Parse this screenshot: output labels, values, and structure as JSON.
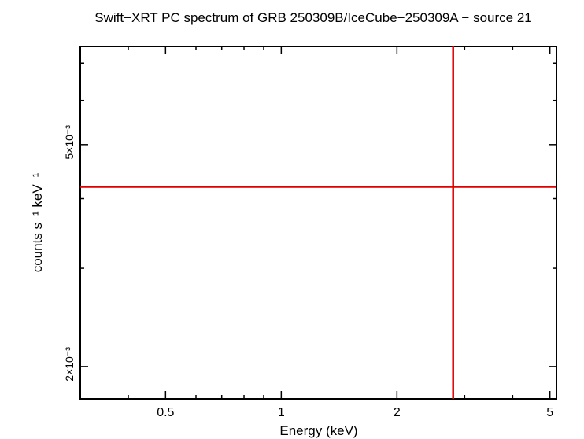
{
  "chart_data": {
    "type": "scatter",
    "title": "Swift−XRT PC spectrum of GRB 250309B/IceCube−250309A − source 21",
    "xlabel": "Energy (keV)",
    "ylabel": "counts s⁻¹ keV⁻¹",
    "x_scale": "log",
    "y_scale": "log",
    "xlim": [
      0.3,
      5.2
    ],
    "ylim": [
      0.00175,
      0.0075
    ],
    "x_ticks": [
      {
        "value": 0.5,
        "label": "0.5"
      },
      {
        "value": 1,
        "label": "1"
      },
      {
        "value": 2,
        "label": "2"
      },
      {
        "value": 5,
        "label": "5"
      }
    ],
    "y_ticks": [
      {
        "value": 0.002,
        "label": "2×10⁻³"
      },
      {
        "value": 0.005,
        "label": "5×10⁻³"
      }
    ],
    "grid": false,
    "series": [
      {
        "color": "#e00000",
        "points": [
          {
            "x": 2.8,
            "xerr": [
              0.3,
              5.2
            ],
            "y": 0.0042,
            "yerr": [
              0.00175,
              0.0075
            ]
          }
        ]
      }
    ]
  }
}
